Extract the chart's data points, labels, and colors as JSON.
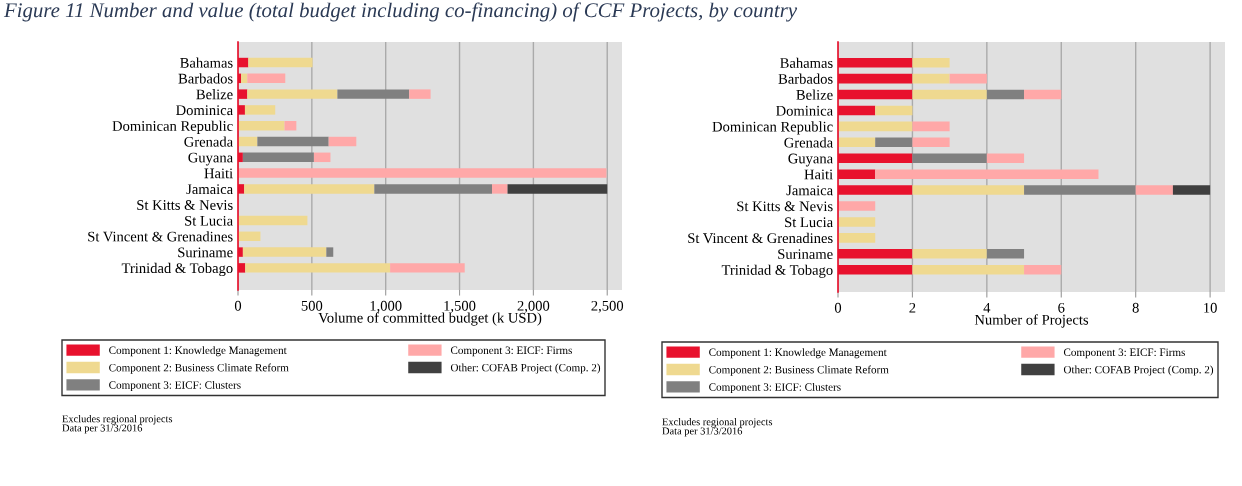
{
  "chart_data": [
    {
      "type": "bar",
      "orientation": "horizontal",
      "stacked": true,
      "title": "Figure 11 Number and value (total budget including co-financing) of CCF Projects, by country",
      "xlabel": "Volume of committed budget (k USD)",
      "categories": [
        "Bahamas",
        "Barbados",
        "Belize",
        "Dominica",
        "Dominican Republic",
        "Grenada",
        "Guyana",
        "Haiti",
        "Jamaica",
        "St Kitts & Nevis",
        "St Lucia",
        "St Vincent & Grenadines",
        "Suriname",
        "Trinidad & Tobago"
      ],
      "series": [
        {
          "name": "Component 1: Knowledge Management",
          "color": "#e8112d",
          "values": [
            70,
            21,
            63,
            47,
            0,
            0,
            33,
            null,
            42,
            0,
            0,
            0,
            33,
            49
          ]
        },
        {
          "name": "Component 2: Business Climate Reform",
          "color": "#efd990",
          "values": [
            435,
            42,
            610,
            205,
            315,
            131,
            0,
            0,
            881,
            0,
            470,
            152,
            565,
            981
          ]
        },
        {
          "name": "Component 3: EICF: Clusters",
          "color": "#808080",
          "values": [
            0,
            0,
            486,
            0,
            0,
            483,
            481,
            0,
            797,
            0,
            0,
            0,
            47,
            0
          ]
        },
        {
          "name": "Component 3: EICF: Firms",
          "color": "#ffa8a8",
          "values": [
            0,
            257,
            145,
            0,
            80,
            187,
            112,
            2495,
            105,
            0,
            0,
            0,
            0,
            505
          ]
        },
        {
          "name": "Other: COFAB Project (Comp. 2)",
          "color": "#404040",
          "values": [
            0,
            0,
            0,
            0,
            0,
            0,
            0,
            0,
            675,
            0,
            0,
            0,
            0,
            0
          ]
        }
      ],
      "xlim": [
        0,
        2600
      ],
      "xticks": [
        0,
        500,
        {
          "value": 1000,
          "label": "1,000"
        },
        {
          "value": 1500,
          "label": "1,500"
        },
        {
          "value": 2000,
          "label": "2,000"
        },
        {
          "value": 2500,
          "label": "2,500"
        }
      ],
      "grid": "x",
      "legend": "bottom",
      "annotations": [
        "Excludes regional projects\nData per 31/3/2016"
      ]
    },
    {
      "type": "bar",
      "orientation": "horizontal",
      "stacked": true,
      "xlabel": "Number of Projects",
      "categories": [
        "Bahamas",
        "Barbados",
        "Belize",
        "Dominica",
        "Dominican Republic",
        "Grenada",
        "Guyana",
        "Haiti",
        "Jamaica",
        "St Kitts & Nevis",
        "St Lucia",
        "St Vincent & Grenadines",
        "Suriname",
        "Trinidad & Tobago"
      ],
      "series": [
        {
          "name": "Component 1: Knowledge Management",
          "color": "#e8112d",
          "values": [
            2,
            2,
            2,
            1,
            0,
            0,
            2,
            1,
            2,
            0,
            0,
            0,
            2,
            2
          ]
        },
        {
          "name": "Component 2: Business Climate Reform",
          "color": "#efd990",
          "values": [
            1,
            1,
            2,
            1,
            2,
            1,
            0,
            0,
            3,
            0,
            1,
            1,
            2,
            3
          ]
        },
        {
          "name": "Component 3: EICF: Clusters",
          "color": "#808080",
          "values": [
            0,
            0,
            1,
            0,
            0,
            1,
            2,
            0,
            3,
            0,
            0,
            0,
            1,
            0
          ]
        },
        {
          "name": "Component 3: EICF: Firms",
          "color": "#ffa8a8",
          "values": [
            0,
            1,
            1,
            0,
            1,
            1,
            1,
            6,
            1,
            1,
            0,
            0,
            0,
            1
          ]
        },
        {
          "name": "Other: COFAB Project (Comp. 2)",
          "color": "#404040",
          "values": [
            0,
            0,
            0,
            0,
            0,
            0,
            0,
            0,
            1,
            0,
            0,
            0,
            0,
            0
          ]
        }
      ],
      "xlim": [
        0,
        10.4
      ],
      "xticks": [
        0,
        2,
        4,
        6,
        8,
        10
      ],
      "grid": "x",
      "legend": "bottom",
      "annotations": [
        "Excludes regional projects\nData per 31/3/2016"
      ]
    }
  ]
}
